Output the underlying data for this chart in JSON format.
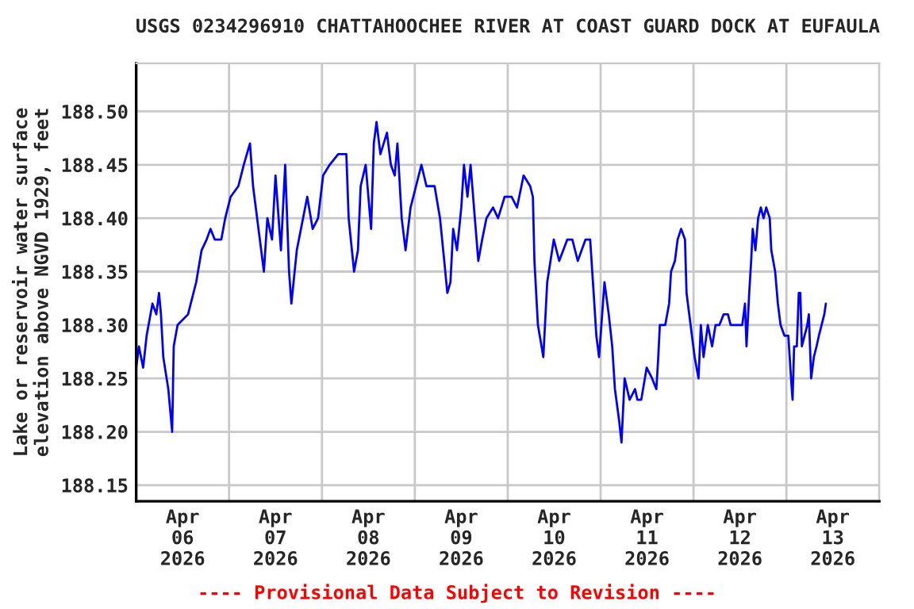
{
  "chart_data": {
    "type": "line",
    "title": "USGS 0234296910 CHATTAHOOCHEE RIVER AT COAST GUARD DOCK AT EUFAULA",
    "ylabel": "Lake or reservoir water surface\nelevation above NGVD 1929, feet",
    "annotations": [
      "---- Provisional Data Subject to Revision ----"
    ],
    "x": [
      "2026-04-06T00:00",
      "2026-04-06T00:42",
      "2026-04-06T01:48",
      "2026-04-06T02:42",
      "2026-04-06T04:12",
      "2026-04-06T05:12",
      "2026-04-06T05:54",
      "2026-04-06T06:24",
      "2026-04-06T07:00",
      "2026-04-06T08:18",
      "2026-04-06T09:18",
      "2026-04-06T09:42",
      "2026-04-06T10:42",
      "2026-04-06T13:24",
      "2026-04-06T14:06",
      "2026-04-06T15:30",
      "2026-04-06T16:54",
      "2026-04-06T18:12",
      "2026-04-06T19:12",
      "2026-04-06T20:18",
      "2026-04-06T22:00",
      "2026-04-06T23:00",
      "2026-04-07T00:24",
      "2026-04-07T02:24",
      "2026-04-07T03:48",
      "2026-04-07T05:24",
      "2026-04-07T06:12",
      "2026-04-07T07:36",
      "2026-04-07T09:00",
      "2026-04-07T09:54",
      "2026-04-07T11:06",
      "2026-04-07T12:00",
      "2026-04-07T13:24",
      "2026-04-07T14:30",
      "2026-04-07T15:30",
      "2026-04-07T16:06",
      "2026-04-07T17:30",
      "2026-04-07T20:12",
      "2026-04-07T21:36",
      "2026-04-07T23:00",
      "2026-04-08T00:18",
      "2026-04-08T02:00",
      "2026-04-08T04:12",
      "2026-04-08T06:18",
      "2026-04-08T06:54",
      "2026-04-08T08:18",
      "2026-04-08T09:18",
      "2026-04-08T10:00",
      "2026-04-08T11:18",
      "2026-04-08T12:42",
      "2026-04-08T13:24",
      "2026-04-08T14:06",
      "2026-04-08T15:06",
      "2026-04-08T16:48",
      "2026-04-08T17:48",
      "2026-04-08T18:48",
      "2026-04-08T19:30",
      "2026-04-08T20:36",
      "2026-04-08T21:36",
      "2026-04-08T22:54",
      "2026-04-09T00:18",
      "2026-04-09T01:42",
      "2026-04-09T03:00",
      "2026-04-09T05:06",
      "2026-04-09T06:30",
      "2026-04-09T07:36",
      "2026-04-09T08:24",
      "2026-04-09T09:12",
      "2026-04-09T09:54",
      "2026-04-09T10:54",
      "2026-04-09T12:00",
      "2026-04-09T12:42",
      "2026-04-09T13:36",
      "2026-04-09T14:24",
      "2026-04-09T15:30",
      "2026-04-09T16:24",
      "2026-04-09T17:24",
      "2026-04-09T18:30",
      "2026-04-09T20:12",
      "2026-04-09T21:30",
      "2026-04-09T23:12",
      "2026-04-10T01:00",
      "2026-04-10T02:24",
      "2026-04-10T04:06",
      "2026-04-10T05:48",
      "2026-04-10T06:30",
      "2026-04-10T06:54",
      "2026-04-10T07:48",
      "2026-04-10T09:12",
      "2026-04-10T10:12",
      "2026-04-10T11:54",
      "2026-04-10T13:18",
      "2026-04-10T15:24",
      "2026-04-10T16:42",
      "2026-04-10T18:06",
      "2026-04-10T20:06",
      "2026-04-10T21:18",
      "2026-04-10T22:12",
      "2026-04-10T22:54",
      "2026-04-10T23:36",
      "2026-04-11T01:00",
      "2026-04-11T02:06",
      "2026-04-11T03:00",
      "2026-04-11T03:42",
      "2026-04-11T04:48",
      "2026-04-11T05:24",
      "2026-04-11T06:12",
      "2026-04-11T07:30",
      "2026-04-11T08:54",
      "2026-04-11T09:30",
      "2026-04-11T10:30",
      "2026-04-11T11:54",
      "2026-04-11T13:18",
      "2026-04-11T14:24",
      "2026-04-11T14:54",
      "2026-04-11T15:18",
      "2026-04-11T16:42",
      "2026-04-11T17:42",
      "2026-04-11T18:12",
      "2026-04-11T19:12",
      "2026-04-11T19:54",
      "2026-04-11T20:48",
      "2026-04-11T21:48",
      "2026-04-11T22:12",
      "2026-04-11T22:54",
      "2026-04-11T23:36",
      "2026-04-12T00:18",
      "2026-04-12T01:18",
      "2026-04-12T01:54",
      "2026-04-12T02:36",
      "2026-04-12T03:42",
      "2026-04-12T04:48",
      "2026-04-12T05:42",
      "2026-04-12T06:42",
      "2026-04-12T07:48",
      "2026-04-12T08:54",
      "2026-04-12T09:36",
      "2026-04-12T12:36",
      "2026-04-12T13:18",
      "2026-04-12T13:42",
      "2026-04-12T14:24",
      "2026-04-12T14:54",
      "2026-04-12T15:18",
      "2026-04-12T16:00",
      "2026-04-12T16:42",
      "2026-04-12T17:24",
      "2026-04-12T18:06",
      "2026-04-12T18:48",
      "2026-04-12T19:42",
      "2026-04-12T20:06",
      "2026-04-12T21:06",
      "2026-04-12T21:48",
      "2026-04-12T22:30",
      "2026-04-12T23:30",
      "2026-04-13T00:30",
      "2026-04-13T01:12",
      "2026-04-13T01:36",
      "2026-04-13T02:00",
      "2026-04-13T02:42",
      "2026-04-13T03:12",
      "2026-04-13T03:36",
      "2026-04-13T04:00",
      "2026-04-13T04:42",
      "2026-04-13T05:24",
      "2026-04-13T05:48",
      "2026-04-13T06:24",
      "2026-04-13T07:06",
      "2026-04-13T07:48",
      "2026-04-13T08:24",
      "2026-04-13T09:06",
      "2026-04-13T09:48",
      "2026-04-13T10:12"
    ],
    "series": [
      {
        "color": "#0000ff",
        "values": [
          188.26,
          188.28,
          188.26,
          188.29,
          188.32,
          188.31,
          188.33,
          188.31,
          188.27,
          188.24,
          188.2,
          188.28,
          188.3,
          188.31,
          188.32,
          188.34,
          188.37,
          188.38,
          188.39,
          188.38,
          188.38,
          188.4,
          188.42,
          188.43,
          188.45,
          188.47,
          188.43,
          188.39,
          188.35,
          188.4,
          188.38,
          188.44,
          188.37,
          188.45,
          188.35,
          188.32,
          188.37,
          188.42,
          188.39,
          188.4,
          188.44,
          188.45,
          188.46,
          188.46,
          188.4,
          188.35,
          188.37,
          188.43,
          188.45,
          188.39,
          188.47,
          188.49,
          188.46,
          188.48,
          188.45,
          188.44,
          188.47,
          188.4,
          188.37,
          188.41,
          188.43,
          188.45,
          188.43,
          188.43,
          188.4,
          188.36,
          188.33,
          188.34,
          188.39,
          188.37,
          188.41,
          188.45,
          188.42,
          188.45,
          188.4,
          188.36,
          188.38,
          188.4,
          188.41,
          188.4,
          188.42,
          188.42,
          188.41,
          188.44,
          188.43,
          188.42,
          188.36,
          188.3,
          188.27,
          188.34,
          188.38,
          188.36,
          188.38,
          188.38,
          188.36,
          188.38,
          188.38,
          188.33,
          188.29,
          188.27,
          188.34,
          188.31,
          188.28,
          188.24,
          188.21,
          188.19,
          188.25,
          188.23,
          188.24,
          188.23,
          188.23,
          188.26,
          188.25,
          188.24,
          188.27,
          188.3,
          188.3,
          188.32,
          188.35,
          188.36,
          188.38,
          188.39,
          188.38,
          188.33,
          188.31,
          188.29,
          188.27,
          188.25,
          188.3,
          188.27,
          188.3,
          188.28,
          188.3,
          188.3,
          188.31,
          188.31,
          188.3,
          188.3,
          188.32,
          188.28,
          188.33,
          188.36,
          188.39,
          188.37,
          188.4,
          188.41,
          188.4,
          188.41,
          188.4,
          188.37,
          188.35,
          188.32,
          188.3,
          188.29,
          188.29,
          188.25,
          188.23,
          188.28,
          188.28,
          188.33,
          188.33,
          188.28,
          188.29,
          188.3,
          188.31,
          188.25,
          188.27,
          188.28,
          188.29,
          188.3,
          188.31,
          188.32
        ]
      }
    ],
    "xlim": [
      "2026-04-06T00:00",
      "2026-04-14T00:00"
    ],
    "xticks": [
      {
        "value": "2026-04-06T00:00",
        "label": null
      },
      {
        "value": "2026-04-06T12:00",
        "label": "Apr\n06\n2026"
      },
      {
        "value": "2026-04-07T00:00",
        "label": null
      },
      {
        "value": "2026-04-07T12:00",
        "label": "Apr\n07\n2026"
      },
      {
        "value": "2026-04-08T00:00",
        "label": null
      },
      {
        "value": "2026-04-08T12:00",
        "label": "Apr\n08\n2026"
      },
      {
        "value": "2026-04-09T00:00",
        "label": null
      },
      {
        "value": "2026-04-09T12:00",
        "label": "Apr\n09\n2026"
      },
      {
        "value": "2026-04-10T00:00",
        "label": null
      },
      {
        "value": "2026-04-10T12:00",
        "label": "Apr\n10\n2026"
      },
      {
        "value": "2026-04-11T00:00",
        "label": null
      },
      {
        "value": "2026-04-11T12:00",
        "label": "Apr\n11\n2026"
      },
      {
        "value": "2026-04-12T00:00",
        "label": null
      },
      {
        "value": "2026-04-12T12:00",
        "label": "Apr\n12\n2026"
      },
      {
        "value": "2026-04-13T00:00",
        "label": null
      },
      {
        "value": "2026-04-13T12:00",
        "label": "Apr\n13\n2026"
      },
      {
        "value": "2026-04-14T00:00",
        "label": null
      }
    ],
    "ylim": [
      188.135,
      188.545
    ],
    "yticks": [
      {
        "value": 188.15,
        "label": "188.15"
      },
      {
        "value": 188.2,
        "label": "188.20"
      },
      {
        "value": 188.25,
        "label": "188.25"
      },
      {
        "value": 188.3,
        "label": "188.30"
      },
      {
        "value": 188.35,
        "label": "188.35"
      },
      {
        "value": 188.4,
        "label": "188.40"
      },
      {
        "value": 188.45,
        "label": "188.45"
      },
      {
        "value": 188.5,
        "label": "188.50"
      }
    ],
    "grid": true
  }
}
